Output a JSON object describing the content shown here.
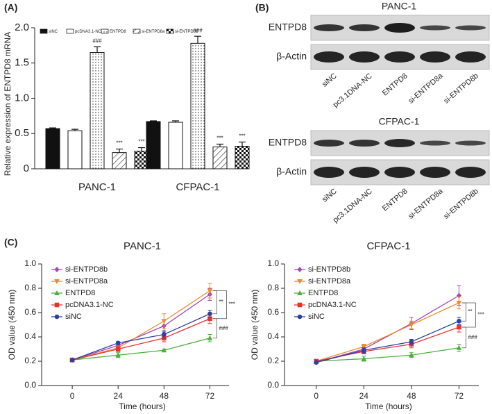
{
  "panels": [
    "(A)",
    "(B)",
    "(C)"
  ],
  "chart_data": [
    {
      "type": "bar",
      "ylabel": "Relative expression of ENTPD8 mRNA",
      "categories": [
        "PANC-1",
        "CFPAC-1"
      ],
      "series": [
        {
          "name": "siNC",
          "color": "#111111",
          "pattern": "solid",
          "values": [
            0.57,
            0.67
          ],
          "errors": [
            0.01,
            0.01
          ]
        },
        {
          "name": "pcDNA3.1-NC",
          "color": "#ffffff",
          "pattern": "solid",
          "values": [
            0.54,
            0.66
          ],
          "errors": [
            0.02,
            0.02
          ]
        },
        {
          "name": "ENTPD8",
          "color": "#ffffff",
          "pattern": "dots",
          "values": [
            1.65,
            1.78
          ],
          "errors": [
            0.08,
            0.1
          ],
          "annotations": [
            "###",
            "###"
          ]
        },
        {
          "name": "si-ENTPD8a",
          "color": "#ffffff",
          "pattern": "hatch",
          "values": [
            0.23,
            0.31
          ],
          "errors": [
            0.05,
            0.04
          ],
          "annotations": [
            "***",
            "***"
          ]
        },
        {
          "name": "si-ENTPD8b",
          "color": "#ffffff",
          "pattern": "checker",
          "values": [
            0.25,
            0.32
          ],
          "errors": [
            0.05,
            0.06
          ],
          "annotations": [
            "***",
            "***"
          ]
        }
      ],
      "ylim": [
        0,
        2
      ],
      "yticks": [
        0,
        0.5,
        {
          "value": 1,
          "label": "1.0"
        },
        1.5,
        {
          "value": 2,
          "label": "2.0"
        }
      ]
    },
    {
      "type": "line",
      "title": "PANC-1",
      "xlabel": "Time (hours)",
      "ylabel": "OD value (450 nm)",
      "x": [
        0,
        24,
        48,
        72
      ],
      "xlim": [
        -16,
        82
      ],
      "xticks": [
        0,
        24,
        48,
        72
      ],
      "ylim": [
        0,
        1
      ],
      "yticks": [
        {
          "value": 0,
          "label": "0.0"
        },
        0.2,
        0.4,
        0.6,
        0.8,
        {
          "value": 1,
          "label": "1.0"
        }
      ],
      "series": [
        {
          "name": "si-ENTPD8b",
          "color": "#a347b8",
          "marker": "diamond",
          "values": [
            0.21,
            0.33,
            0.49,
            0.75
          ],
          "errors": [
            0.01,
            0.02,
            0.05,
            0.05
          ]
        },
        {
          "name": "si-ENTPD8a",
          "color": "#f08a2c",
          "marker": "triangle-down",
          "values": [
            0.21,
            0.31,
            0.53,
            0.78
          ],
          "errors": [
            0.01,
            0.01,
            0.06,
            0.06
          ]
        },
        {
          "name": "ENTPD8",
          "color": "#4caf3e",
          "marker": "triangle-up",
          "values": [
            0.21,
            0.25,
            0.29,
            0.39
          ],
          "errors": [
            0.01,
            0.02,
            0.01,
            0.03
          ]
        },
        {
          "name": "pcDNA3.1-NC",
          "color": "#e8322e",
          "marker": "square",
          "values": [
            0.21,
            0.3,
            0.39,
            0.55
          ],
          "errors": [
            0.01,
            0.02,
            0.03,
            0.04
          ]
        },
        {
          "name": "siNC",
          "color": "#2e3f9e",
          "marker": "circle",
          "values": [
            0.21,
            0.35,
            0.42,
            0.59
          ],
          "errors": [
            0.01,
            0.01,
            0.03,
            0.03
          ]
        }
      ],
      "annotations": [
        "**",
        "***",
        "###"
      ]
    },
    {
      "type": "line",
      "title": "CFPAC-1",
      "xlabel": "Time (hours)",
      "ylabel": "OD value (450 nm)",
      "x": [
        0,
        24,
        48,
        72
      ],
      "xlim": [
        -16,
        82
      ],
      "xticks": [
        0,
        24,
        48,
        72
      ],
      "ylim": [
        0,
        1
      ],
      "yticks": [
        {
          "value": 0,
          "label": "0.0"
        },
        0.2,
        0.4,
        0.6,
        0.8,
        {
          "value": 1,
          "label": "1.0"
        }
      ],
      "series": [
        {
          "name": "si-ENTPD8b",
          "color": "#a347b8",
          "marker": "diamond",
          "values": [
            0.19,
            0.3,
            0.51,
            0.74
          ],
          "errors": [
            0.01,
            0.01,
            0.05,
            0.08
          ]
        },
        {
          "name": "si-ENTPD8a",
          "color": "#f08a2c",
          "marker": "triangle-down",
          "values": [
            0.2,
            0.32,
            0.5,
            0.68
          ],
          "errors": [
            0.01,
            0.02,
            0.03,
            0.05
          ]
        },
        {
          "name": "ENTPD8",
          "color": "#4caf3e",
          "marker": "triangle-up",
          "values": [
            0.2,
            0.22,
            0.25,
            0.31
          ],
          "errors": [
            0.01,
            0.02,
            0.02,
            0.03
          ]
        },
        {
          "name": "pcDNA3.1-NC",
          "color": "#e8322e",
          "marker": "square",
          "values": [
            0.2,
            0.28,
            0.34,
            0.48
          ],
          "errors": [
            0.01,
            0.02,
            0.03,
            0.04
          ]
        },
        {
          "name": "siNC",
          "color": "#2e3f9e",
          "marker": "circle",
          "values": [
            0.19,
            0.29,
            0.36,
            0.53
          ],
          "errors": [
            0.01,
            0.02,
            0.02,
            0.03
          ]
        }
      ],
      "annotations": [
        "**",
        "***",
        "###"
      ]
    }
  ],
  "blots": [
    {
      "title": "PANC-1",
      "rows": [
        "ENTPD8",
        "β-Actin"
      ],
      "lanes": [
        "siNC",
        "pc3.1DNA-NC",
        "ENTPD8",
        "si-ENTPD8a",
        "si-ENTPD8b"
      ]
    },
    {
      "title": "CFPAC-1",
      "rows": [
        "ENTPD8",
        "β-Actin"
      ],
      "lanes": [
        "siNC",
        "pc3.1DNA-NC",
        "ENTPD8",
        "si-ENTPD8a",
        "si-ENTPD8b"
      ]
    }
  ]
}
